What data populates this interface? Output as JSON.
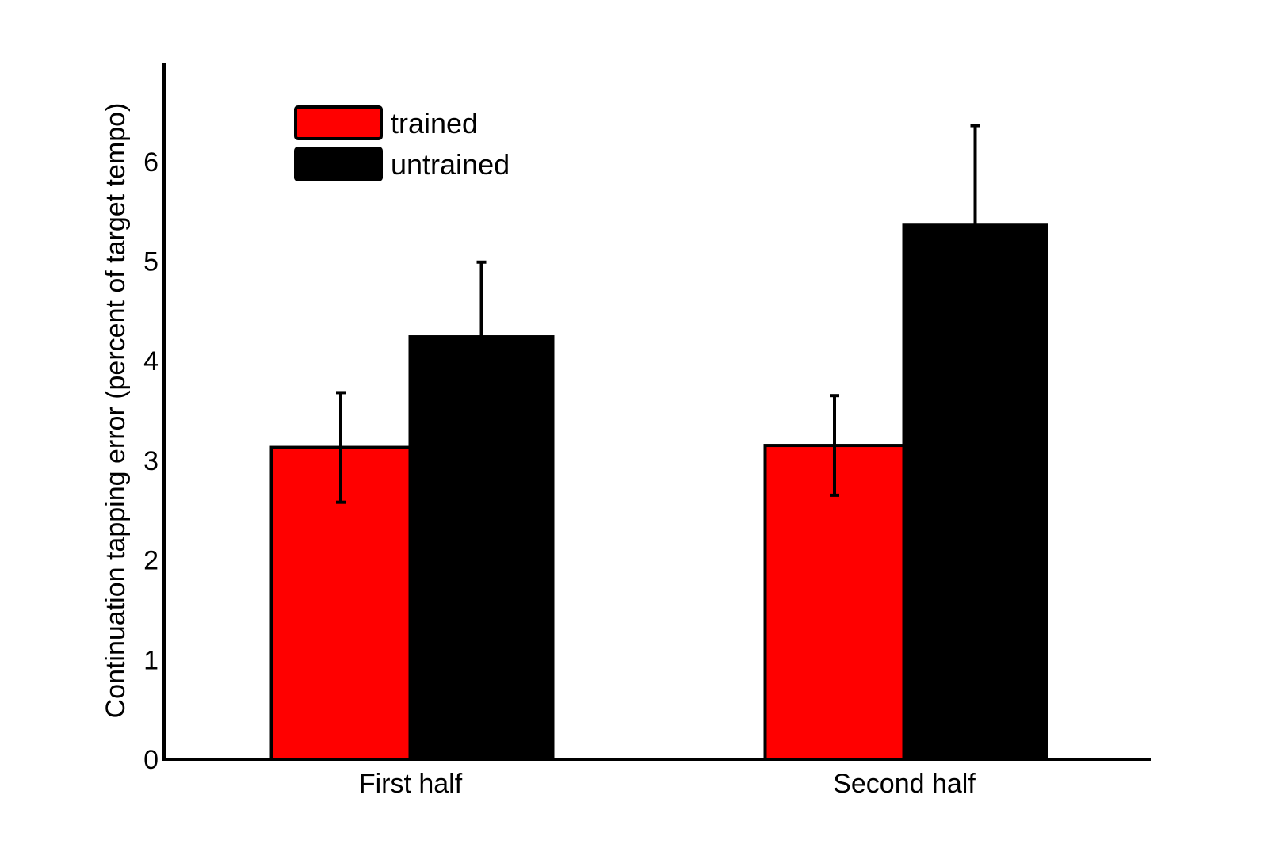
{
  "chart_data": {
    "type": "bar",
    "title": "",
    "xlabel": "",
    "ylabel": "Continuation tapping error (percent of target tempo)",
    "ylim": [
      0,
      7
    ],
    "yticks": [
      0,
      1,
      2,
      3,
      4,
      5,
      6
    ],
    "grid": false,
    "legend_position": "top-left",
    "categories": [
      "First half",
      "Second half"
    ],
    "series": [
      {
        "name": "trained",
        "color": "#ff0000",
        "values": [
          3.13,
          3.15
        ],
        "errors": [
          0.55,
          0.5
        ]
      },
      {
        "name": "untrained",
        "color": "#000000",
        "values": [
          4.24,
          5.36
        ],
        "errors": [
          0.75,
          1.0
        ]
      }
    ]
  }
}
